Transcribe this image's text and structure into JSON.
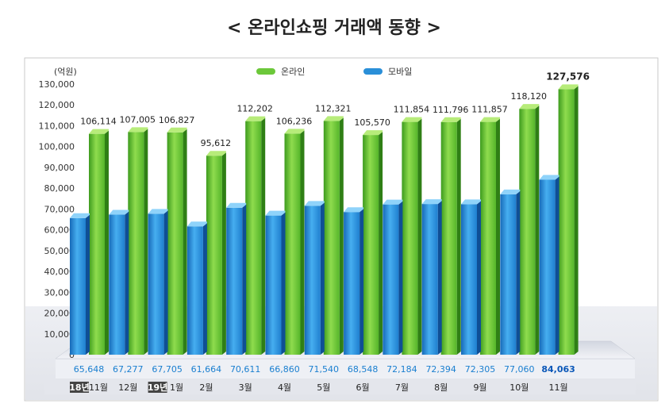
{
  "chart_data": {
    "type": "bar",
    "title": "< 온라인쇼핑 거래액 동향 >",
    "unit_label": "(억원)",
    "ylim": [
      0,
      130000
    ],
    "yticks": [
      "0",
      "10,000",
      "20,000",
      "30,000",
      "40,000",
      "50,000",
      "60,000",
      "70,000",
      "80,000",
      "90,000",
      "100,000",
      "110,000",
      "120,000",
      "130,000"
    ],
    "legend_position": "top-center",
    "categories": [
      {
        "year_tag": "18년",
        "month": "11월"
      },
      {
        "year_tag": "",
        "month": "12월"
      },
      {
        "year_tag": "19년",
        "month": "1월"
      },
      {
        "year_tag": "",
        "month": "2월"
      },
      {
        "year_tag": "",
        "month": "3월"
      },
      {
        "year_tag": "",
        "month": "4월"
      },
      {
        "year_tag": "",
        "month": "5월"
      },
      {
        "year_tag": "",
        "month": "6월"
      },
      {
        "year_tag": "",
        "month": "7월"
      },
      {
        "year_tag": "",
        "month": "8월"
      },
      {
        "year_tag": "",
        "month": "9월"
      },
      {
        "year_tag": "",
        "month": "10월"
      },
      {
        "year_tag": "",
        "month": "11월"
      }
    ],
    "series": [
      {
        "name": "온라인",
        "color": "#6cc83a",
        "values": [
          106114,
          107005,
          106827,
          95612,
          112202,
          106236,
          112321,
          105570,
          111854,
          111796,
          111857,
          118120,
          127576
        ],
        "labels": [
          "106,114",
          "107,005",
          "106,827",
          "95,612",
          "112,202",
          "106,236",
          "112,321",
          "105,570",
          "111,854",
          "111,796",
          "111,857",
          "118,120",
          "127,576"
        ]
      },
      {
        "name": "모바일",
        "color": "#2a8fd8",
        "values": [
          65648,
          67277,
          67705,
          61664,
          70611,
          66860,
          71540,
          68548,
          72184,
          72394,
          72305,
          77060,
          84063
        ],
        "labels": [
          "65,648",
          "67,277",
          "67,705",
          "61,664",
          "70,611",
          "66,860",
          "71,540",
          "68,548",
          "72,184",
          "72,394",
          "72,305",
          "77,060",
          "84,063"
        ]
      }
    ]
  }
}
